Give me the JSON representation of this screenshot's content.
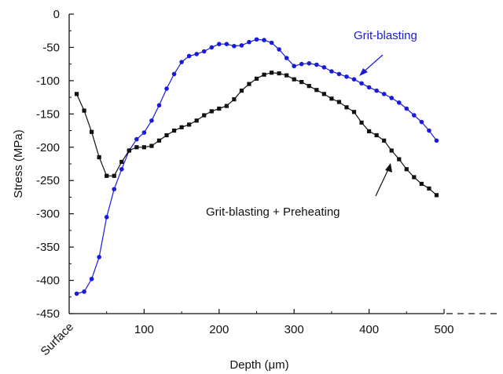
{
  "chart_data": {
    "type": "line",
    "xlabel_prefix": "Depth (",
    "xlabel_unit": "μm",
    "xlabel_suffix": ")",
    "ylabel": "Stress (MPa)",
    "xlim": [
      0,
      500
    ],
    "ylim": [
      -450,
      0
    ],
    "x_ticks": [
      100,
      200,
      300,
      400,
      500
    ],
    "y_ticks": [
      0,
      -50,
      -100,
      -150,
      -200,
      -250,
      -300,
      -350,
      -400,
      -450
    ],
    "x_origin_label": "Surface",
    "grid": false,
    "series": [
      {
        "name": "Grit-blasting",
        "color": "#1a1adc",
        "marker": "circle",
        "x": [
          10,
          20,
          30,
          40,
          50,
          60,
          70,
          80,
          90,
          100,
          110,
          120,
          130,
          140,
          150,
          160,
          170,
          180,
          190,
          200,
          210,
          220,
          230,
          240,
          250,
          260,
          270,
          280,
          290,
          300,
          310,
          320,
          330,
          340,
          350,
          360,
          370,
          380,
          390,
          400,
          410,
          420,
          430,
          440,
          450,
          460,
          470,
          480,
          490
        ],
        "y": [
          -420,
          -417,
          -398,
          -365,
          -305,
          -263,
          -233,
          -205,
          -188,
          -178,
          -160,
          -137,
          -112,
          -90,
          -72,
          -63,
          -60,
          -56,
          -50,
          -45,
          -45,
          -48,
          -47,
          -42,
          -38,
          -39,
          -43,
          -53,
          -66,
          -78,
          -75,
          -74,
          -76,
          -80,
          -86,
          -90,
          -94,
          -98,
          -104,
          -110,
          -115,
          -120,
          -126,
          -133,
          -142,
          -152,
          -162,
          -175,
          -190
        ]
      },
      {
        "name": "Grit-blasting + Preheating",
        "color": "#111111",
        "marker": "square",
        "x": [
          10,
          20,
          30,
          40,
          50,
          60,
          70,
          80,
          90,
          100,
          110,
          120,
          130,
          140,
          150,
          160,
          170,
          180,
          190,
          200,
          210,
          220,
          230,
          240,
          250,
          260,
          270,
          280,
          290,
          300,
          310,
          320,
          330,
          340,
          350,
          360,
          370,
          380,
          390,
          400,
          410,
          420,
          430,
          440,
          450,
          460,
          470,
          480,
          490
        ],
        "y": [
          -120,
          -145,
          -177,
          -215,
          -243,
          -243,
          -222,
          -205,
          -200,
          -200,
          -198,
          -190,
          -182,
          -175,
          -170,
          -166,
          -160,
          -152,
          -146,
          -142,
          -138,
          -128,
          -115,
          -105,
          -97,
          -91,
          -88,
          -89,
          -92,
          -98,
          -102,
          -108,
          -114,
          -120,
          -127,
          -132,
          -140,
          -147,
          -163,
          -176,
          -182,
          -190,
          -205,
          -218,
          -233,
          -245,
          -255,
          -262,
          -272
        ]
      }
    ],
    "annotations": [
      {
        "text": "Grit-blasting",
        "color": "#1a1adc"
      },
      {
        "text": "Grit-blasting + Preheating",
        "color": "#111111"
      }
    ]
  }
}
